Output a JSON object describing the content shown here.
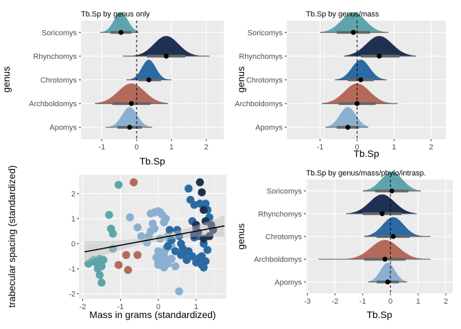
{
  "colors": {
    "panel_bg": "#ebebeb",
    "grid_major": "#ffffff",
    "Soricomys": "#5fa4ac",
    "Rhynchomys": "#1f3152",
    "Chrotomys": "#2c6aa3",
    "Archboldomys": "#b36a5b",
    "Apomys": "#8aafd1",
    "interval": "#666666",
    "point": "#000000"
  },
  "chart_data": [
    {
      "type": "halfeye",
      "title": "Tb.Sp by genus only",
      "xlabel": "Tb.Sp",
      "ylabel": "genus",
      "xlim": [
        -1.6,
        2.5
      ],
      "xticks": [
        "-1",
        "0",
        "1",
        "2"
      ],
      "xtick_values": [
        -1,
        0,
        1,
        2
      ],
      "ref_line": 0,
      "categories": [
        "Soricomys",
        "Rhynchomys",
        "Chrotomys",
        "Archboldomys",
        "Apomys"
      ],
      "series": [
        {
          "name": "Soricomys",
          "mean": -0.45,
          "sd": 0.2,
          "lo": -1.05,
          "hi": 0.05,
          "q_lo": -0.75,
          "q_hi": -0.15
        },
        {
          "name": "Rhynchomys",
          "mean": 0.85,
          "sd": 0.35,
          "lo": -0.4,
          "hi": 2.1,
          "q_lo": 0.3,
          "q_hi": 1.4
        },
        {
          "name": "Chrotomys",
          "mean": 0.35,
          "sd": 0.2,
          "lo": -0.3,
          "hi": 1.0,
          "q_lo": 0.05,
          "q_hi": 0.7
        },
        {
          "name": "Archboldomys",
          "mean": -0.15,
          "sd": 0.38,
          "lo": -1.2,
          "hi": 0.9,
          "q_lo": -0.7,
          "q_hi": 0.4
        },
        {
          "name": "Apomys",
          "mean": -0.2,
          "sd": 0.22,
          "lo": -0.9,
          "hi": 0.45,
          "q_lo": -0.55,
          "q_hi": 0.15
        }
      ]
    },
    {
      "type": "halfeye",
      "title": "Tb.Sp by genus/mass",
      "xlabel": "Tb.Sp",
      "ylabel": "genus",
      "xlim": [
        -1.9,
        2.4
      ],
      "xticks": [
        "-1",
        "0",
        "1",
        "2"
      ],
      "xtick_values": [
        -1,
        0,
        1,
        2
      ],
      "ref_line": 0,
      "categories": [
        "Soricomys",
        "Rhynchomys",
        "Chrotomys",
        "Archboldomys",
        "Apomys"
      ],
      "series": [
        {
          "name": "Soricomys",
          "mean": -0.1,
          "sd": 0.32,
          "lo": -1.0,
          "hi": 0.85,
          "q_lo": -0.55,
          "q_hi": 0.35
        },
        {
          "name": "Rhynchomys",
          "mean": 0.6,
          "sd": 0.35,
          "lo": -0.35,
          "hi": 1.6,
          "q_lo": 0.1,
          "q_hi": 1.15
        },
        {
          "name": "Chrotomys",
          "mean": 0.1,
          "sd": 0.24,
          "lo": -0.6,
          "hi": 0.8,
          "q_lo": -0.25,
          "q_hi": 0.45
        },
        {
          "name": "Archboldomys",
          "mean": 0.0,
          "sd": 0.34,
          "lo": -0.95,
          "hi": 1.1,
          "q_lo": -0.5,
          "q_hi": 0.5
        },
        {
          "name": "Apomys",
          "mean": -0.25,
          "sd": 0.22,
          "lo": -0.85,
          "hi": 0.3,
          "q_lo": -0.55,
          "q_hi": 0.05
        }
      ]
    },
    {
      "type": "scatter",
      "xlabel": "Mass in grams (standardized)",
      "ylabel": "trabecular spacing (standardized)",
      "xlim": [
        -2.1,
        1.8
      ],
      "ylim": [
        -2.2,
        2.75
      ],
      "xticks": [
        "-2",
        "-1",
        "0",
        "1"
      ],
      "xtick_values": [
        -2,
        -1,
        0,
        1
      ],
      "yticks": [
        "-2",
        "-1",
        "0",
        "1",
        "2"
      ],
      "ytick_values": [
        -2,
        -1,
        0,
        1,
        2
      ],
      "regression": {
        "intercept": 0.22,
        "slope": 0.28
      },
      "series": [
        {
          "name": "Soricomys",
          "x": [
            -1.85,
            -1.75,
            -1.65,
            -1.6,
            -1.55,
            -1.5,
            -1.45,
            -1.5,
            -1.55,
            -1.7,
            -1.3,
            -1.25,
            -1.2,
            -1.05,
            -1.2
          ],
          "y": [
            -0.8,
            -0.7,
            -0.75,
            -1.0,
            -1.25,
            -1.55,
            -0.65,
            -0.9,
            -0.6,
            -0.65,
            1.15,
            0.6,
            0.4,
            2.35,
            -0.2
          ]
        },
        {
          "name": "Archboldomys",
          "x": [
            -0.65,
            -0.85,
            -0.55,
            -1.05,
            -0.8
          ],
          "y": [
            2.45,
            -0.45,
            -0.45,
            -0.85,
            -1.05
          ]
        },
        {
          "name": "Apomys",
          "x": [
            -0.75,
            -0.55,
            -0.45,
            -0.3,
            -0.2,
            -0.15,
            -0.1,
            0.0,
            0.05,
            0.1,
            0.15,
            0.2,
            0.25,
            0.3,
            0.35,
            0.0,
            -0.05,
            0.1,
            0.2,
            0.0,
            0.15,
            0.25,
            0.35,
            0.45,
            0.55,
            -0.25,
            -0.2,
            0.05,
            -0.1,
            0.0,
            0.05,
            0.15,
            0.2
          ],
          "y": [
            1.05,
            0.65,
            0.3,
            0.05,
            1.2,
            0.8,
            1.25,
            1.3,
            1.25,
            1.15,
            0.85,
            1.0,
            0.3,
            0.1,
            -0.1,
            -0.3,
            -0.55,
            -0.7,
            -0.6,
            -0.85,
            -0.95,
            -0.8,
            -0.6,
            -0.9,
            -1.9,
            0.3,
            0.5,
            0.2,
            0.6,
            -0.75,
            -0.5,
            -0.35,
            -0.2
          ]
        },
        {
          "name": "Chrotomys",
          "x": [
            0.8,
            0.85,
            0.95,
            1.1,
            1.25,
            1.3,
            1.35,
            0.9,
            1.0,
            0.95,
            1.05,
            1.2,
            1.3,
            1.25,
            0.5,
            0.55,
            0.6,
            0.65,
            0.7,
            0.75,
            0.9,
            1.0,
            1.1,
            1.15,
            1.2,
            0.3,
            0.35,
            0.25,
            0.45,
            0.6,
            0.8,
            1.15
          ],
          "y": [
            2.2,
            1.75,
            1.55,
            1.6,
            1.6,
            1.35,
            1.05,
            0.9,
            0.6,
            0.25,
            0.3,
            0.0,
            -0.25,
            -0.7,
            0.55,
            0.3,
            0.0,
            -0.2,
            -0.4,
            -0.65,
            -0.5,
            -0.75,
            -0.55,
            -0.85,
            -0.95,
            0.55,
            0.15,
            -0.1,
            -0.3,
            -0.45,
            -0.3,
            -0.5
          ]
        },
        {
          "name": "Rhynchomys",
          "x": [
            1.1,
            1.15,
            1.2,
            1.0,
            1.25,
            1.4,
            1.45,
            1.35,
            1.2,
            0.95,
            1.05
          ],
          "y": [
            2.45,
            2.05,
            1.35,
            0.75,
            0.9,
            0.75,
            0.55,
            0.3,
            0.2,
            0.35,
            0.45
          ]
        }
      ]
    },
    {
      "type": "halfeye",
      "title": "Tb.Sp by genus/mass/phylo/intrasp.",
      "xlabel": "Tb.Sp",
      "ylabel": "genus",
      "xlim": [
        -3.05,
        2.25
      ],
      "xticks": [
        "-3",
        "-2",
        "-1",
        "0",
        "1",
        "2"
      ],
      "xtick_values": [
        -3,
        -2,
        -1,
        0,
        1,
        2
      ],
      "ref_line": 0,
      "categories": [
        "Soricomys",
        "Rhynchomys",
        "Chrotomys",
        "Archboldomys",
        "Apomys"
      ],
      "series": [
        {
          "name": "Soricomys",
          "mean": 0.05,
          "sd": 0.38,
          "lo": -1.0,
          "hi": 1.1,
          "q_lo": -0.55,
          "q_hi": 0.65
        },
        {
          "name": "Rhynchomys",
          "mean": -0.3,
          "sd": 0.45,
          "lo": -1.6,
          "hi": 0.95,
          "q_lo": -1.0,
          "q_hi": 0.4
        },
        {
          "name": "Chrotomys",
          "mean": 0.1,
          "sd": 0.38,
          "lo": -0.95,
          "hi": 1.45,
          "q_lo": -0.5,
          "q_hi": 0.7
        },
        {
          "name": "Archboldomys",
          "mean": -0.2,
          "sd": 0.5,
          "lo": -2.6,
          "hi": 1.45,
          "q_lo": -0.95,
          "q_hi": 0.55
        },
        {
          "name": "Apomys",
          "mean": -0.1,
          "sd": 0.26,
          "lo": -0.8,
          "hi": 0.6,
          "q_lo": -0.5,
          "q_hi": 0.3
        }
      ]
    }
  ]
}
